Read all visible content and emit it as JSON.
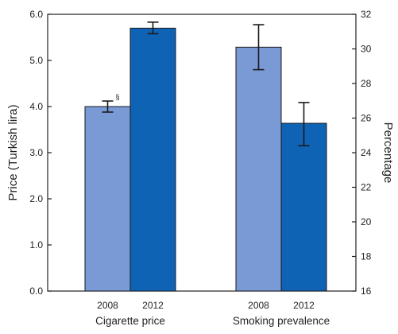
{
  "chart_data": {
    "type": "bar",
    "groups": [
      {
        "label": "Cigarette price",
        "axis": "left",
        "bars": [
          {
            "category": "2008",
            "value": 4.0,
            "error_low": 3.88,
            "error_high": 4.12,
            "color": "#7a9ad6",
            "note": "§"
          },
          {
            "category": "2012",
            "value": 5.7,
            "error_low": 5.58,
            "error_high": 5.83,
            "color": "#0f63b5",
            "note": ""
          }
        ]
      },
      {
        "label": "Smoking prevalence",
        "axis": "right",
        "bars": [
          {
            "category": "2008",
            "value": 30.1,
            "error_low": 28.8,
            "error_high": 31.4,
            "color": "#7a9ad6",
            "note": ""
          },
          {
            "category": "2012",
            "value": 25.7,
            "error_low": 24.4,
            "error_high": 26.9,
            "color": "#0f63b5",
            "note": ""
          }
        ]
      }
    ],
    "left_axis": {
      "label": "Price (Turkish lira)",
      "ylim": [
        0,
        6.0
      ],
      "ticks": [
        "0.0",
        "1.0",
        "2.0",
        "3.0",
        "4.0",
        "5.0",
        "6.0"
      ]
    },
    "right_axis": {
      "label": "Percentage",
      "ylim": [
        16,
        32
      ],
      "ticks": [
        "16",
        "18",
        "20",
        "22",
        "24",
        "26",
        "28",
        "30",
        "32"
      ]
    },
    "grid": false
  }
}
